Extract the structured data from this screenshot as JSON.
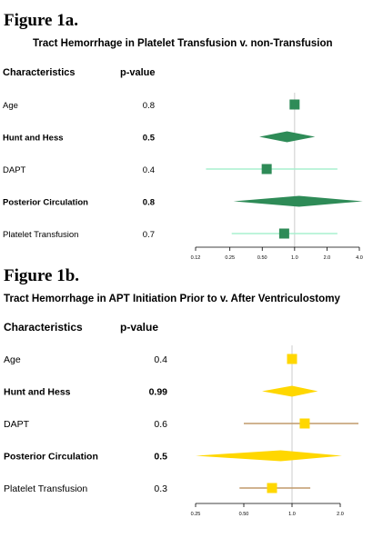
{
  "figures": [
    {
      "label": "Figure 1a.",
      "title": "Tract Hemorrhage in Platelet Transfusion v. non-Transfusion",
      "headers": {
        "characteristics": "Characteristics",
        "pvalue": "p-value"
      }
    },
    {
      "label": "Figure 1b.",
      "title": "Tract Hemorrhage in APT Initiation Prior to v. After Ventriculostomy",
      "headers": {
        "characteristics": "Characteristics",
        "pvalue": "p-value"
      }
    }
  ],
  "chart_data": [
    {
      "type": "forest",
      "x_scale": "log",
      "xlim": [
        0.12,
        4.0
      ],
      "reference_line": 1.0,
      "tick_labels": [
        "0.12",
        "0.25",
        "0.50",
        "1.0",
        "2.0",
        "4.0"
      ],
      "colors": {
        "marker": "#2e8b57",
        "ci": "#a8f0cf",
        "reference": "#cccccc"
      },
      "rows": [
        {
          "label": "Age",
          "pvalue": "0.8",
          "bold": false,
          "kind": "point",
          "est": 1.0,
          "lo": 1.0,
          "hi": 1.0
        },
        {
          "label": "Hunt and Hess",
          "pvalue": "0.5",
          "bold": true,
          "kind": "diamond",
          "est": 0.85,
          "lo": 0.47,
          "hi": 1.55
        },
        {
          "label": "DAPT",
          "pvalue": "0.4",
          "bold": false,
          "kind": "point",
          "est": 0.55,
          "lo": 0.15,
          "hi": 2.5
        },
        {
          "label": "Posterior Circulation",
          "pvalue": "0.8",
          "bold": true,
          "kind": "diamond",
          "est": 1.1,
          "lo": 0.27,
          "hi": 4.3
        },
        {
          "label": "Platelet Transfusion",
          "pvalue": "0.7",
          "bold": false,
          "kind": "point",
          "est": 0.8,
          "lo": 0.26,
          "hi": 2.5
        }
      ]
    },
    {
      "type": "forest",
      "x_scale": "log",
      "xlim": [
        0.25,
        2.0
      ],
      "reference_line": 1.0,
      "tick_labels": [
        "0.25",
        "0.50",
        "1.0",
        "2.0"
      ],
      "colors": {
        "marker": "#ffd700",
        "ci": "#c19a6b",
        "reference": "#cccccc"
      },
      "rows": [
        {
          "label": "Age",
          "pvalue": "0.4",
          "bold": false,
          "kind": "point",
          "est": 1.0,
          "lo": 1.0,
          "hi": 1.0
        },
        {
          "label": "Hunt and Hess",
          "pvalue": "0.99",
          "bold": true,
          "kind": "diamond",
          "est": 1.0,
          "lo": 0.65,
          "hi": 1.45
        },
        {
          "label": "DAPT",
          "pvalue": "0.6",
          "bold": false,
          "kind": "point",
          "est": 1.2,
          "lo": 0.5,
          "hi": 3.0
        },
        {
          "label": "Posterior Circulation",
          "pvalue": "0.5",
          "bold": true,
          "kind": "diamond",
          "est": 0.85,
          "lo": 0.25,
          "hi": 2.05
        },
        {
          "label": "Platelet Transfusion",
          "pvalue": "0.3",
          "bold": false,
          "kind": "point",
          "est": 0.75,
          "lo": 0.47,
          "hi": 1.3
        }
      ]
    }
  ]
}
